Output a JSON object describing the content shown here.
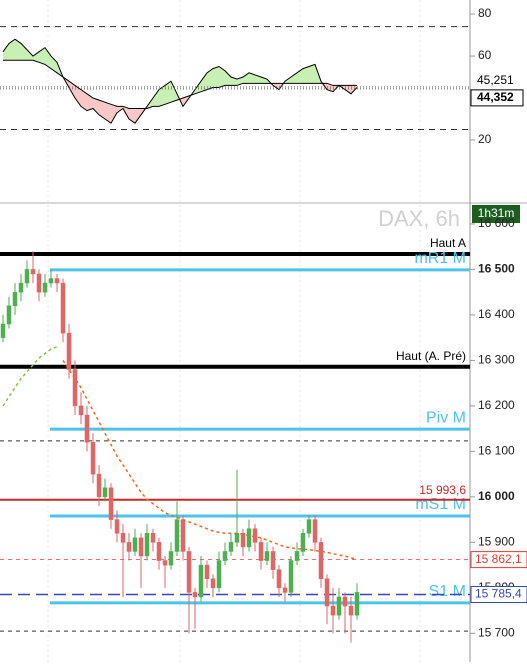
{
  "chart_data": [
    {
      "type": "oscillator",
      "series": [
        {
          "color": "#000000",
          "values": [
            62,
            66,
            68,
            66,
            63,
            60,
            62,
            64,
            60,
            57,
            50,
            45,
            40,
            36,
            34,
            35,
            32,
            30,
            28,
            33,
            35,
            30,
            28,
            32,
            36,
            40,
            44,
            46,
            48,
            42,
            36,
            40,
            44,
            48,
            52,
            54,
            55,
            53,
            50,
            49,
            50,
            52,
            51,
            50,
            49,
            46,
            44,
            48,
            50,
            52,
            54,
            55,
            56,
            48,
            44,
            43,
            46,
            44,
            42,
            45
          ]
        },
        {
          "color": "#000000",
          "values": [
            58,
            58,
            58,
            58,
            58,
            58,
            57,
            56,
            54,
            52,
            50,
            48,
            46,
            44,
            42,
            40,
            39,
            38,
            37,
            36,
            36,
            35,
            35,
            35,
            35,
            36,
            36,
            37,
            38,
            39,
            40,
            41,
            42,
            43,
            44,
            45,
            45,
            46,
            46,
            46,
            47,
            47,
            47,
            47,
            47,
            47,
            47,
            47,
            47,
            47,
            47,
            47,
            47,
            47,
            47,
            46,
            46,
            46,
            46,
            46
          ]
        }
      ],
      "up_fill": "#c8f0b4",
      "down_fill": "#f8c8c8",
      "ylim": [
        -8.6,
        86.7
      ],
      "yticks": [
        20,
        60,
        80
      ],
      "levels": [
        74,
        25
      ],
      "markers": [
        {
          "value": 45.251,
          "label": "45,251"
        },
        {
          "value": 44.352,
          "label": "44,352"
        }
      ]
    },
    {
      "type": "candlestick",
      "title": "DAX, 6h",
      "badge": "1h31m",
      "up_color": "#4caf50",
      "down_color": "#e06666",
      "ohlc": [
        [
          16350,
          16400,
          16340,
          16380
        ],
        [
          16380,
          16440,
          16370,
          16420
        ],
        [
          16420,
          16470,
          16400,
          16450
        ],
        [
          16450,
          16490,
          16430,
          16470
        ],
        [
          16470,
          16520,
          16460,
          16500
        ],
        [
          16500,
          16540,
          16470,
          16490
        ],
        [
          16490,
          16500,
          16430,
          16450
        ],
        [
          16450,
          16490,
          16440,
          16470
        ],
        [
          16470,
          16500,
          16460,
          16480
        ],
        [
          16480,
          16490,
          16450,
          16470
        ],
        [
          16470,
          16480,
          16340,
          16360
        ],
        [
          16360,
          16380,
          16260,
          16280
        ],
        [
          16280,
          16300,
          16180,
          16200
        ],
        [
          16200,
          16230,
          16160,
          16180
        ],
        [
          16180,
          16200,
          16100,
          16120
        ],
        [
          16120,
          16140,
          16030,
          16050
        ],
        [
          16050,
          16070,
          15980,
          16000
        ],
        [
          16000,
          16040,
          15990,
          16020
        ],
        [
          16020,
          16030,
          15930,
          15950
        ],
        [
          15950,
          15970,
          15900,
          15920
        ],
        [
          15920,
          15940,
          15780,
          15900
        ],
        [
          15900,
          15920,
          15860,
          15880
        ],
        [
          15880,
          15930,
          15870,
          15910
        ],
        [
          15910,
          15920,
          15800,
          15870
        ],
        [
          15870,
          15940,
          15860,
          15920
        ],
        [
          15920,
          15930,
          15880,
          15900
        ],
        [
          15900,
          15910,
          15840,
          15860
        ],
        [
          15860,
          15870,
          15800,
          15850
        ],
        [
          15850,
          15900,
          15840,
          15880
        ],
        [
          15880,
          15990,
          15870,
          15950
        ],
        [
          15950,
          15960,
          15860,
          15880
        ],
        [
          15880,
          15890,
          15700,
          15790
        ],
        [
          15790,
          15800,
          15710,
          15780
        ],
        [
          15780,
          15870,
          15770,
          15850
        ],
        [
          15850,
          15860,
          15800,
          15820
        ],
        [
          15820,
          15830,
          15780,
          15800
        ],
        [
          15800,
          15880,
          15790,
          15860
        ],
        [
          15860,
          15900,
          15850,
          15880
        ],
        [
          15880,
          15920,
          15870,
          15900
        ],
        [
          15900,
          16060,
          15890,
          15920
        ],
        [
          15920,
          15930,
          15870,
          15890
        ],
        [
          15890,
          15950,
          15880,
          15930
        ],
        [
          15930,
          15940,
          15880,
          15900
        ],
        [
          15900,
          15910,
          15840,
          15860
        ],
        [
          15860,
          15900,
          15850,
          15880
        ],
        [
          15880,
          15890,
          15820,
          15840
        ],
        [
          15840,
          15850,
          15780,
          15800
        ],
        [
          15800,
          15810,
          15770,
          15790
        ],
        [
          15790,
          15870,
          15780,
          15860
        ],
        [
          15860,
          15900,
          15850,
          15880
        ],
        [
          15880,
          15930,
          15870,
          15920
        ],
        [
          15920,
          15960,
          15910,
          15950
        ],
        [
          15950,
          15960,
          15880,
          15900
        ],
        [
          15900,
          15910,
          15800,
          15820
        ],
        [
          15820,
          15830,
          15720,
          15760
        ],
        [
          15760,
          15800,
          15700,
          15740
        ],
        [
          15740,
          15800,
          15730,
          15780
        ],
        [
          15780,
          15790,
          15700,
          15760
        ],
        [
          15760,
          15780,
          15680,
          15740
        ],
        [
          15740,
          15810,
          15730,
          15790
        ]
      ],
      "averages": [
        {
          "color": "#7cc53a",
          "values": [
            16200,
            16220,
            16240,
            16260,
            16275,
            16290,
            16305,
            16315,
            16325,
            16330,
            null,
            null,
            null,
            null,
            null,
            null,
            null,
            null,
            null,
            null,
            null,
            null,
            null,
            null,
            null,
            null,
            null,
            null,
            null,
            null,
            null,
            null,
            null,
            null,
            null,
            null,
            null,
            null,
            null,
            null,
            null,
            null,
            null,
            null,
            null,
            null,
            null,
            null,
            null,
            null,
            null,
            null,
            null,
            null,
            null,
            null,
            null,
            null,
            null,
            null
          ]
        },
        {
          "color": "#f06a1e",
          "values": [
            null,
            null,
            null,
            null,
            null,
            null,
            null,
            null,
            null,
            null,
            16300,
            16280,
            16260,
            16240,
            16215,
            16190,
            16165,
            16140,
            16115,
            16090,
            16070,
            16050,
            16030,
            16010,
            15995,
            15985,
            15975,
            15965,
            15960,
            15955,
            15950,
            15945,
            15940,
            15935,
            15930,
            15925,
            15922,
            15920,
            15920,
            15920,
            15918,
            15915,
            15912,
            15910,
            15905,
            15900,
            15895,
            15890,
            15888,
            15886,
            15885,
            15884,
            15882,
            15880,
            15878,
            15875,
            15872,
            15870,
            15866,
            15862
          ]
        }
      ],
      "ylim": [
        15637,
        16646
      ],
      "yticks": [
        {
          "value": 15700,
          "label": "15 700"
        },
        {
          "value": 15800,
          "label": "15 800"
        },
        {
          "value": 15900,
          "label": "15 900"
        },
        {
          "value": 16000,
          "label": "16 000"
        },
        {
          "value": 16100,
          "label": "16 100"
        },
        {
          "value": 16200,
          "label": "16 200"
        },
        {
          "value": 16300,
          "label": "16 300"
        },
        {
          "value": 16400,
          "label": "16 400"
        },
        {
          "value": 16500,
          "label": "16 500"
        },
        {
          "value": 16600,
          "label": "16 600"
        }
      ],
      "levels": [
        {
          "value": 16534,
          "label": "Haut A",
          "color": "#000000"
        },
        {
          "value": 16499,
          "label": "mR1 M",
          "color": "#4cc3ea"
        },
        {
          "value": 16286,
          "label": "Haut (A. Pré)",
          "color": "#000000"
        },
        {
          "value": 16149,
          "label": "Piv M",
          "color": "#4cc3ea"
        },
        {
          "value": 15958,
          "label": "mS1 M",
          "color": "#4cc3ea"
        },
        {
          "value": 15767,
          "label": "S1 M",
          "color": "#4cc3ea"
        }
      ],
      "dashed_levels": [
        16123,
        15705
      ],
      "price_markers": [
        {
          "value": 15993.6,
          "label": "15 993,6",
          "color": "#c62828"
        },
        {
          "value": 15862.1,
          "label": "15 862,1",
          "color": "#e53935"
        },
        {
          "value": 15785.4,
          "label": "15 785,4",
          "color": "#3949ab"
        }
      ]
    }
  ]
}
